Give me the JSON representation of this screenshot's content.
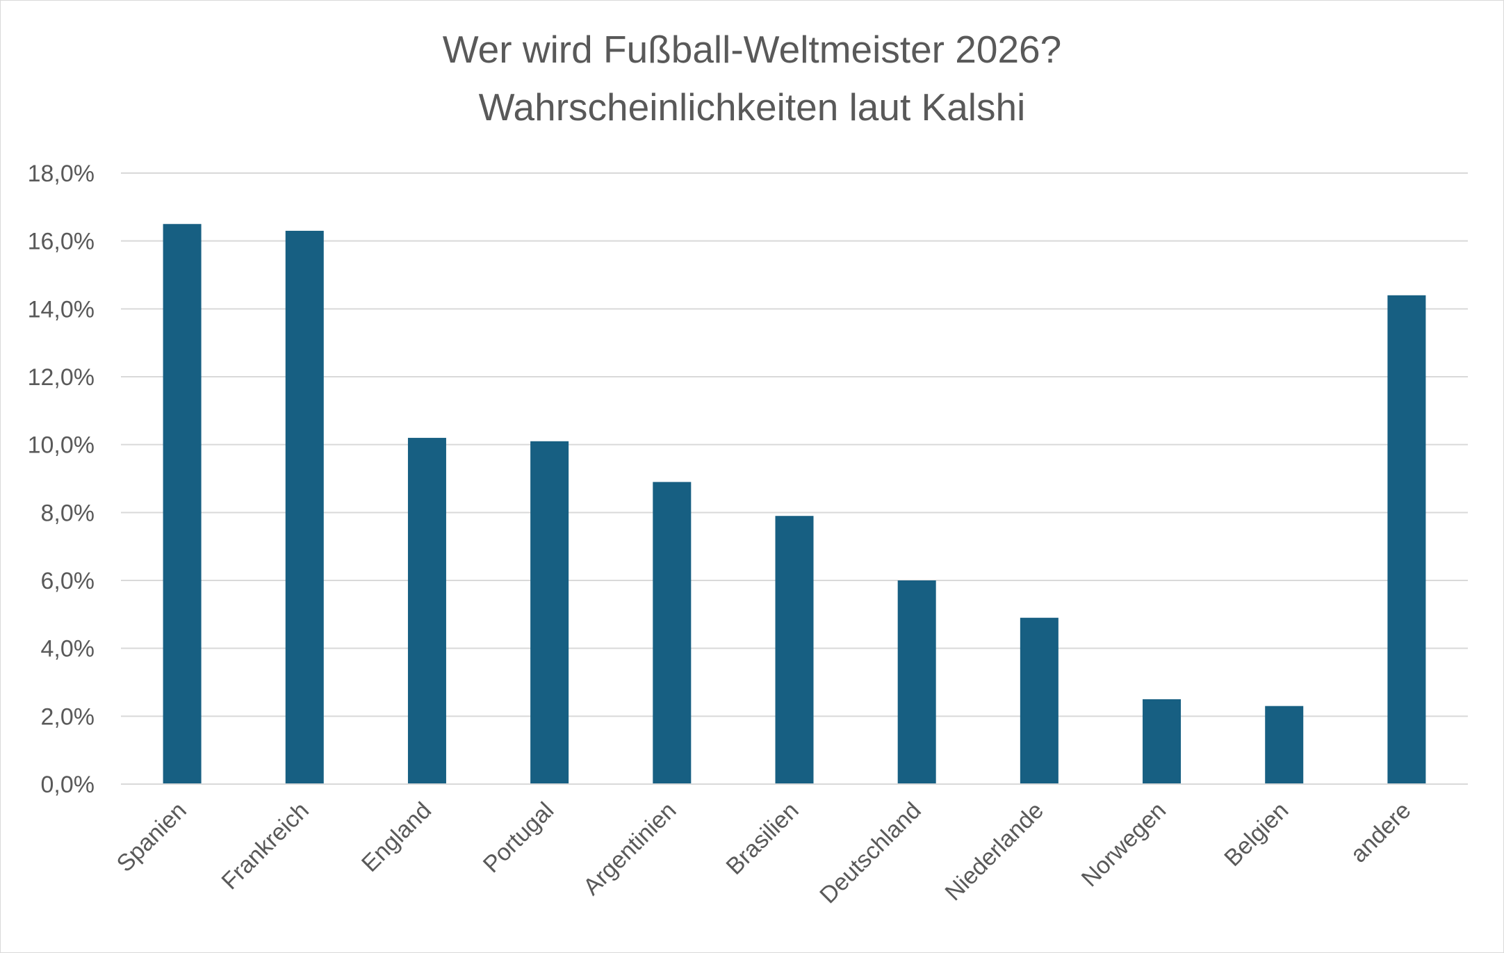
{
  "chart_data": {
    "type": "bar",
    "title": "Wer wird Fußball-Weltmeister 2026?",
    "subtitle": "Wahrscheinlichkeiten laut Kalshi",
    "categories": [
      "Spanien",
      "Frankreich",
      "England",
      "Portugal",
      "Argentinien",
      "Brasilien",
      "Deutschland",
      "Niederlande",
      "Norwegen",
      "Belgien",
      "andere"
    ],
    "values": [
      16.5,
      16.3,
      10.2,
      10.1,
      8.9,
      7.9,
      6.0,
      4.9,
      2.5,
      2.3,
      14.4
    ],
    "value_format": "percent, one decimal, comma separator",
    "ylim": [
      0,
      18
    ],
    "yticks": [
      "0,0%",
      "2,0%",
      "4,0%",
      "6,0%",
      "8,0%",
      "10,0%",
      "12,0%",
      "14,0%",
      "16,0%",
      "18,0%"
    ],
    "xlabel": "",
    "ylabel": "",
    "grid": true,
    "legend": "none",
    "bar_color": "#175F82",
    "grid_color": "#d9d9d9",
    "text_color": "#595959"
  }
}
